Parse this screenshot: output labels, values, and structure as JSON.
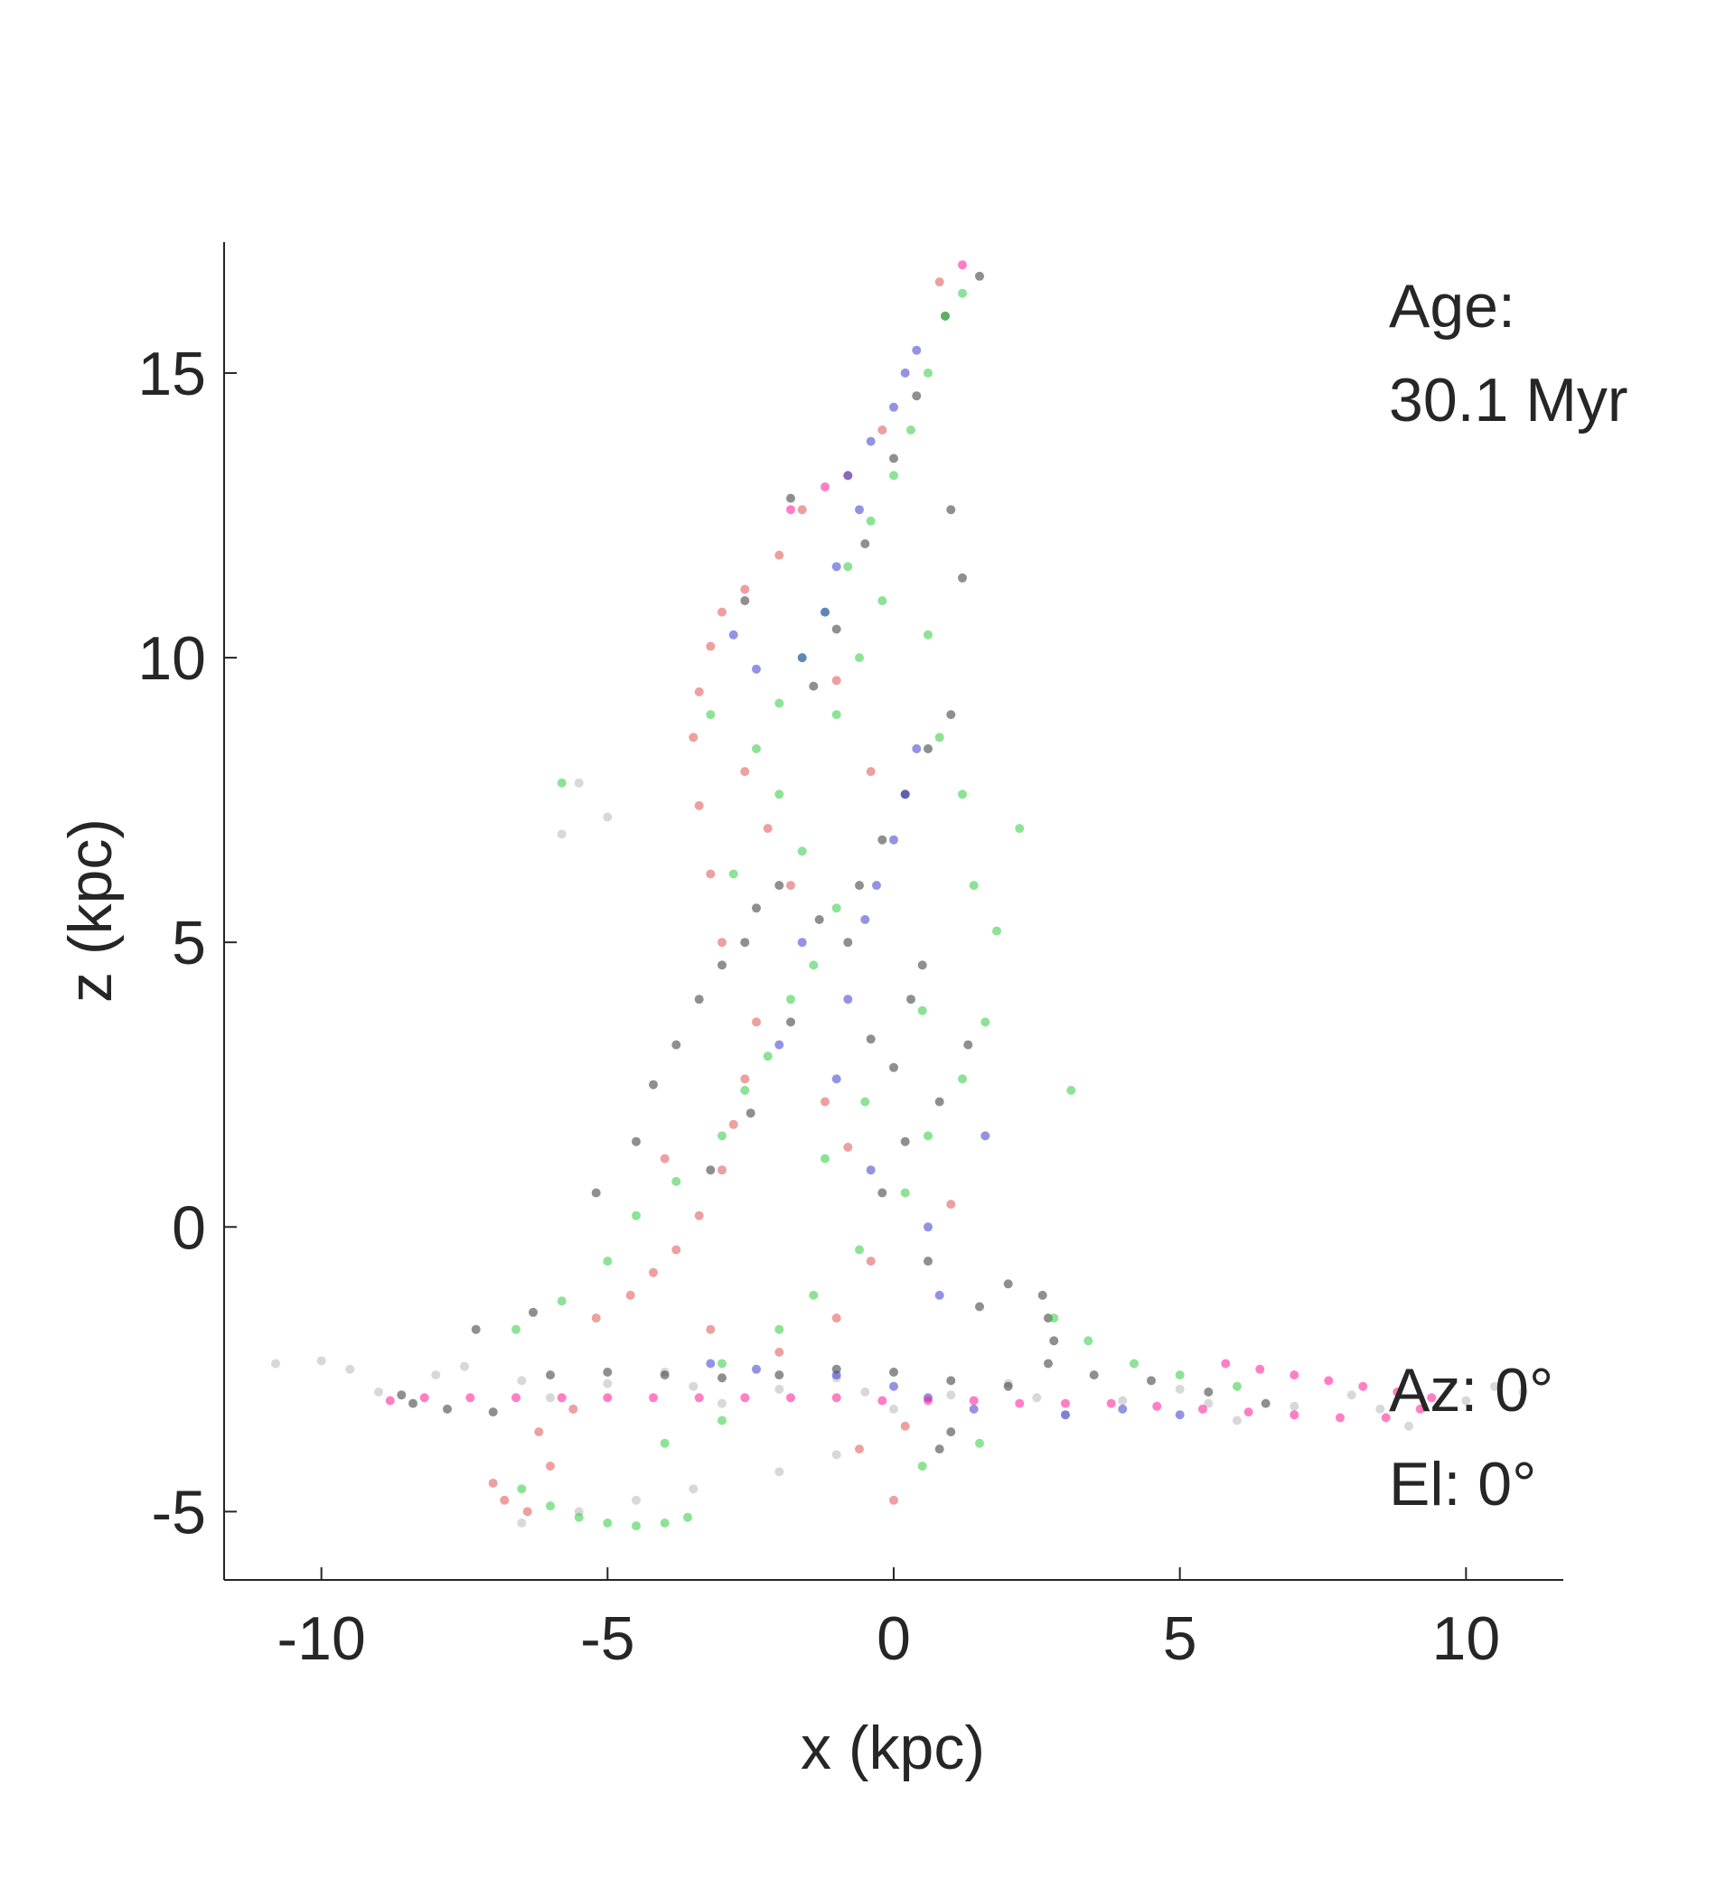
{
  "chart_data": {
    "type": "scatter",
    "title": "",
    "xlabel": "x (kpc)",
    "ylabel": "z (kpc)",
    "xlim": [
      -11.7,
      11.7
    ],
    "ylim": [
      -6.2,
      17.3
    ],
    "x_ticks": [
      -10,
      -5,
      0,
      5,
      10
    ],
    "y_ticks": [
      -5,
      0,
      5,
      10,
      15
    ],
    "x_tick_labels": [
      "-10",
      "-5",
      "0",
      "5",
      "10"
    ],
    "y_tick_labels": [
      "-5",
      "0",
      "5",
      "10",
      "15"
    ],
    "grid": false,
    "legend": "none",
    "annotations": {
      "age_label": "Age:",
      "age_value": "30.1 Myr",
      "azimuth": "Az: 0°",
      "elevation": "El: 0°"
    },
    "series": [
      {
        "color": "#b8b8b8",
        "description": "galactic disk particles (edge-on)",
        "points": [
          [
            -10.8,
            -2.4
          ],
          [
            -9.5,
            -2.5
          ],
          [
            -8.0,
            -2.6
          ],
          [
            -6.5,
            -2.7
          ],
          [
            -5.0,
            -2.75
          ],
          [
            -3.5,
            -2.8
          ],
          [
            -2.0,
            -2.85
          ],
          [
            -0.5,
            -2.9
          ],
          [
            1.0,
            -2.95
          ],
          [
            2.5,
            -3.0
          ],
          [
            4.0,
            -3.05
          ],
          [
            5.5,
            -3.1
          ],
          [
            7.0,
            -3.15
          ],
          [
            8.5,
            -3.2
          ],
          [
            10.0,
            -3.05
          ],
          [
            11.0,
            -2.9
          ],
          [
            -10.0,
            -2.35
          ],
          [
            -7.5,
            -2.45
          ],
          [
            -4.0,
            -2.55
          ],
          [
            -1.0,
            -2.65
          ],
          [
            2.0,
            -2.75
          ],
          [
            5.0,
            -2.85
          ],
          [
            8.0,
            -2.95
          ],
          [
            10.5,
            -2.8
          ],
          [
            -9.0,
            -2.9
          ],
          [
            -6.0,
            -3.0
          ],
          [
            -3.0,
            -3.1
          ],
          [
            0.0,
            -3.2
          ],
          [
            3.0,
            -3.3
          ],
          [
            6.0,
            -3.4
          ],
          [
            9.0,
            -3.5
          ],
          [
            -6.5,
            -5.2
          ],
          [
            -5.5,
            -5.0
          ],
          [
            -4.5,
            -4.8
          ],
          [
            -3.5,
            -4.6
          ],
          [
            -2.0,
            -4.3
          ],
          [
            -1.0,
            -4.0
          ],
          [
            -5.5,
            7.8
          ],
          [
            -5.0,
            7.2
          ],
          [
            -5.8,
            6.9
          ]
        ]
      },
      {
        "color": "#333333",
        "description": "old / black particles",
        "points": [
          [
            -8.6,
            -2.95
          ],
          [
            -8.4,
            -3.1
          ],
          [
            -7.8,
            -3.2
          ],
          [
            -7.0,
            -3.25
          ],
          [
            -6.0,
            -2.6
          ],
          [
            -5.0,
            -2.55
          ],
          [
            -4.0,
            -2.6
          ],
          [
            -3.0,
            -2.65
          ],
          [
            -2.0,
            -2.6
          ],
          [
            -1.0,
            -2.5
          ],
          [
            0.0,
            -2.55
          ],
          [
            1.0,
            -2.7
          ],
          [
            2.0,
            -2.8
          ],
          [
            2.6,
            -1.2
          ],
          [
            2.7,
            -1.6
          ],
          [
            2.8,
            -2.0
          ],
          [
            2.7,
            -2.4
          ],
          [
            3.5,
            -2.6
          ],
          [
            4.5,
            -2.7
          ],
          [
            5.5,
            -2.9
          ],
          [
            6.5,
            -3.1
          ],
          [
            -4.5,
            1.5
          ],
          [
            -4.2,
            2.5
          ],
          [
            -3.8,
            3.2
          ],
          [
            -3.4,
            4.0
          ],
          [
            -3.0,
            4.6
          ],
          [
            -2.6,
            5.0
          ],
          [
            -2.4,
            5.6
          ],
          [
            -2.0,
            6.0
          ],
          [
            -1.8,
            3.6
          ],
          [
            -1.3,
            5.4
          ],
          [
            -0.8,
            5.0
          ],
          [
            -0.6,
            6.0
          ],
          [
            -0.2,
            6.8
          ],
          [
            0.2,
            7.6
          ],
          [
            0.5,
            4.6
          ],
          [
            0.3,
            4.0
          ],
          [
            -0.4,
            3.3
          ],
          [
            0.8,
            2.2
          ],
          [
            0.2,
            1.5
          ],
          [
            -0.2,
            0.6
          ],
          [
            0.6,
            -0.6
          ],
          [
            1.5,
            -1.4
          ],
          [
            2.0,
            -1.0
          ],
          [
            -1.4,
            9.5
          ],
          [
            -1.0,
            10.5
          ],
          [
            -0.5,
            12.0
          ],
          [
            0.0,
            13.5
          ],
          [
            0.4,
            14.6
          ],
          [
            0.9,
            16.0
          ],
          [
            1.5,
            16.7
          ],
          [
            1.0,
            12.6
          ],
          [
            1.2,
            11.4
          ],
          [
            -2.6,
            11.0
          ],
          [
            -1.8,
            12.8
          ],
          [
            1.0,
            9.0
          ],
          [
            0.6,
            8.4
          ],
          [
            -5.2,
            0.6
          ],
          [
            -6.3,
            -1.5
          ],
          [
            -7.3,
            -1.8
          ],
          [
            1.0,
            -3.6
          ],
          [
            0.8,
            -3.9
          ],
          [
            -2.5,
            2.0
          ],
          [
            -3.2,
            1.0
          ],
          [
            0.0,
            2.8
          ],
          [
            1.3,
            3.2
          ]
        ]
      },
      {
        "color": "#2ecc40",
        "description": "green particles",
        "points": [
          [
            -6.5,
            -4.6
          ],
          [
            -6.0,
            -4.9
          ],
          [
            -5.5,
            -5.1
          ],
          [
            -5.0,
            -5.2
          ],
          [
            -4.5,
            -5.25
          ],
          [
            -4.0,
            -5.2
          ],
          [
            -3.6,
            -5.1
          ],
          [
            -6.6,
            -1.8
          ],
          [
            -5.8,
            -1.3
          ],
          [
            -5.0,
            -0.6
          ],
          [
            -4.5,
            0.2
          ],
          [
            -3.8,
            0.8
          ],
          [
            -3.0,
            1.6
          ],
          [
            -2.6,
            2.4
          ],
          [
            -2.2,
            3.0
          ],
          [
            -1.8,
            4.0
          ],
          [
            -1.4,
            4.6
          ],
          [
            -1.0,
            5.6
          ],
          [
            -1.6,
            6.6
          ],
          [
            -2.0,
            7.6
          ],
          [
            -2.4,
            8.4
          ],
          [
            -2.0,
            9.2
          ],
          [
            -1.6,
            10.0
          ],
          [
            -1.2,
            10.8
          ],
          [
            -0.8,
            11.6
          ],
          [
            -0.4,
            12.4
          ],
          [
            0.0,
            13.2
          ],
          [
            0.3,
            14.0
          ],
          [
            0.6,
            15.0
          ],
          [
            0.9,
            16.0
          ],
          [
            1.2,
            16.4
          ],
          [
            -1.0,
            9.0
          ],
          [
            -0.6,
            10.0
          ],
          [
            -0.2,
            11.0
          ],
          [
            0.6,
            10.4
          ],
          [
            0.8,
            8.6
          ],
          [
            1.2,
            7.6
          ],
          [
            1.4,
            6.0
          ],
          [
            1.8,
            5.2
          ],
          [
            1.6,
            3.6
          ],
          [
            1.2,
            2.6
          ],
          [
            0.6,
            1.6
          ],
          [
            0.2,
            0.6
          ],
          [
            -0.6,
            -0.4
          ],
          [
            -1.4,
            -1.2
          ],
          [
            -2.0,
            -1.8
          ],
          [
            -3.0,
            -2.4
          ],
          [
            2.8,
            -1.6
          ],
          [
            3.4,
            -2.0
          ],
          [
            4.2,
            -2.4
          ],
          [
            5.0,
            -2.6
          ],
          [
            6.0,
            -2.8
          ],
          [
            -0.5,
            2.2
          ],
          [
            -1.2,
            1.2
          ],
          [
            0.5,
            3.8
          ],
          [
            -2.8,
            6.2
          ],
          [
            -3.2,
            9.0
          ],
          [
            -5.8,
            7.8
          ],
          [
            2.2,
            7.0
          ],
          [
            3.1,
            2.4
          ],
          [
            -4.0,
            -3.8
          ],
          [
            -3.0,
            -3.4
          ],
          [
            1.5,
            -3.8
          ],
          [
            0.5,
            -4.2
          ]
        ]
      },
      {
        "color": "#e05050",
        "description": "red particles",
        "points": [
          [
            -7.0,
            -4.5
          ],
          [
            -6.8,
            -4.8
          ],
          [
            -6.4,
            -5.0
          ],
          [
            -6.0,
            -4.2
          ],
          [
            -6.2,
            -3.6
          ],
          [
            -5.6,
            -3.2
          ],
          [
            -5.2,
            -1.6
          ],
          [
            -4.6,
            -1.2
          ],
          [
            -4.2,
            -0.8
          ],
          [
            -3.8,
            -0.4
          ],
          [
            -3.4,
            0.2
          ],
          [
            -3.0,
            1.0
          ],
          [
            -2.8,
            1.8
          ],
          [
            -2.6,
            2.6
          ],
          [
            -3.0,
            5.0
          ],
          [
            -3.2,
            6.2
          ],
          [
            -3.4,
            7.4
          ],
          [
            -3.5,
            8.6
          ],
          [
            -3.4,
            9.4
          ],
          [
            -3.2,
            10.2
          ],
          [
            -3.0,
            10.8
          ],
          [
            -2.6,
            11.2
          ],
          [
            -2.0,
            11.8
          ],
          [
            -1.6,
            12.6
          ],
          [
            -0.8,
            13.2
          ],
          [
            -0.2,
            14.0
          ],
          [
            0.8,
            16.6
          ],
          [
            -2.6,
            8.0
          ],
          [
            -2.2,
            7.0
          ],
          [
            -1.8,
            6.0
          ],
          [
            -1.0,
            9.6
          ],
          [
            -0.4,
            8.0
          ],
          [
            -1.2,
            2.2
          ],
          [
            -0.8,
            1.4
          ],
          [
            -0.4,
            -0.6
          ],
          [
            -1.0,
            -1.6
          ],
          [
            -2.0,
            -2.2
          ],
          [
            -3.2,
            -1.8
          ],
          [
            0.2,
            -3.5
          ],
          [
            -0.6,
            -3.9
          ],
          [
            0.0,
            -4.8
          ],
          [
            -2.4,
            3.6
          ],
          [
            -4.0,
            1.2
          ],
          [
            1.0,
            0.4
          ]
        ]
      },
      {
        "color": "#3a3ad0",
        "description": "blue particles",
        "points": [
          [
            -0.8,
            13.2
          ],
          [
            -0.4,
            13.8
          ],
          [
            0.0,
            14.4
          ],
          [
            0.2,
            15.0
          ],
          [
            0.4,
            15.4
          ],
          [
            -0.6,
            12.6
          ],
          [
            -1.0,
            11.6
          ],
          [
            -1.2,
            10.8
          ],
          [
            -1.6,
            10.0
          ],
          [
            0.4,
            8.4
          ],
          [
            0.2,
            7.6
          ],
          [
            0.0,
            6.8
          ],
          [
            -0.3,
            6.0
          ],
          [
            -0.5,
            5.4
          ],
          [
            -2.4,
            9.8
          ],
          [
            -2.8,
            10.4
          ],
          [
            -0.8,
            4.0
          ],
          [
            -1.0,
            2.6
          ],
          [
            -0.4,
            1.0
          ],
          [
            0.6,
            0.0
          ],
          [
            -3.2,
            -2.4
          ],
          [
            -2.4,
            -2.5
          ],
          [
            -1.0,
            -2.6
          ],
          [
            0.0,
            -2.8
          ],
          [
            0.6,
            -3.0
          ],
          [
            1.4,
            -3.2
          ],
          [
            3.0,
            -3.3
          ],
          [
            4.0,
            -3.2
          ],
          [
            5.0,
            -3.3
          ],
          [
            -1.6,
            5.0
          ],
          [
            -2.0,
            3.2
          ],
          [
            1.6,
            1.6
          ],
          [
            0.8,
            -1.2
          ]
        ]
      },
      {
        "color": "#ff1493",
        "description": "magenta disk stream",
        "points": [
          [
            -8.8,
            -3.05
          ],
          [
            -8.2,
            -3.0
          ],
          [
            -7.4,
            -3.0
          ],
          [
            -6.6,
            -3.0
          ],
          [
            -5.8,
            -3.0
          ],
          [
            -5.0,
            -3.0
          ],
          [
            -4.2,
            -3.0
          ],
          [
            -3.4,
            -3.0
          ],
          [
            -2.6,
            -3.0
          ],
          [
            -1.8,
            -3.0
          ],
          [
            -1.0,
            -3.0
          ],
          [
            -0.2,
            -3.05
          ],
          [
            0.6,
            -3.05
          ],
          [
            1.4,
            -3.05
          ],
          [
            2.2,
            -3.1
          ],
          [
            3.0,
            -3.1
          ],
          [
            3.8,
            -3.1
          ],
          [
            4.6,
            -3.15
          ],
          [
            5.4,
            -3.2
          ],
          [
            6.2,
            -3.25
          ],
          [
            7.0,
            -3.3
          ],
          [
            7.8,
            -3.35
          ],
          [
            8.6,
            -3.35
          ],
          [
            9.2,
            -3.2
          ],
          [
            5.8,
            -2.4
          ],
          [
            6.4,
            -2.5
          ],
          [
            7.0,
            -2.6
          ],
          [
            7.6,
            -2.7
          ],
          [
            8.2,
            -2.8
          ],
          [
            8.8,
            -2.9
          ],
          [
            9.4,
            -3.0
          ],
          [
            -1.8,
            12.6
          ],
          [
            -1.2,
            13.0
          ],
          [
            1.2,
            16.9
          ]
        ]
      }
    ]
  }
}
